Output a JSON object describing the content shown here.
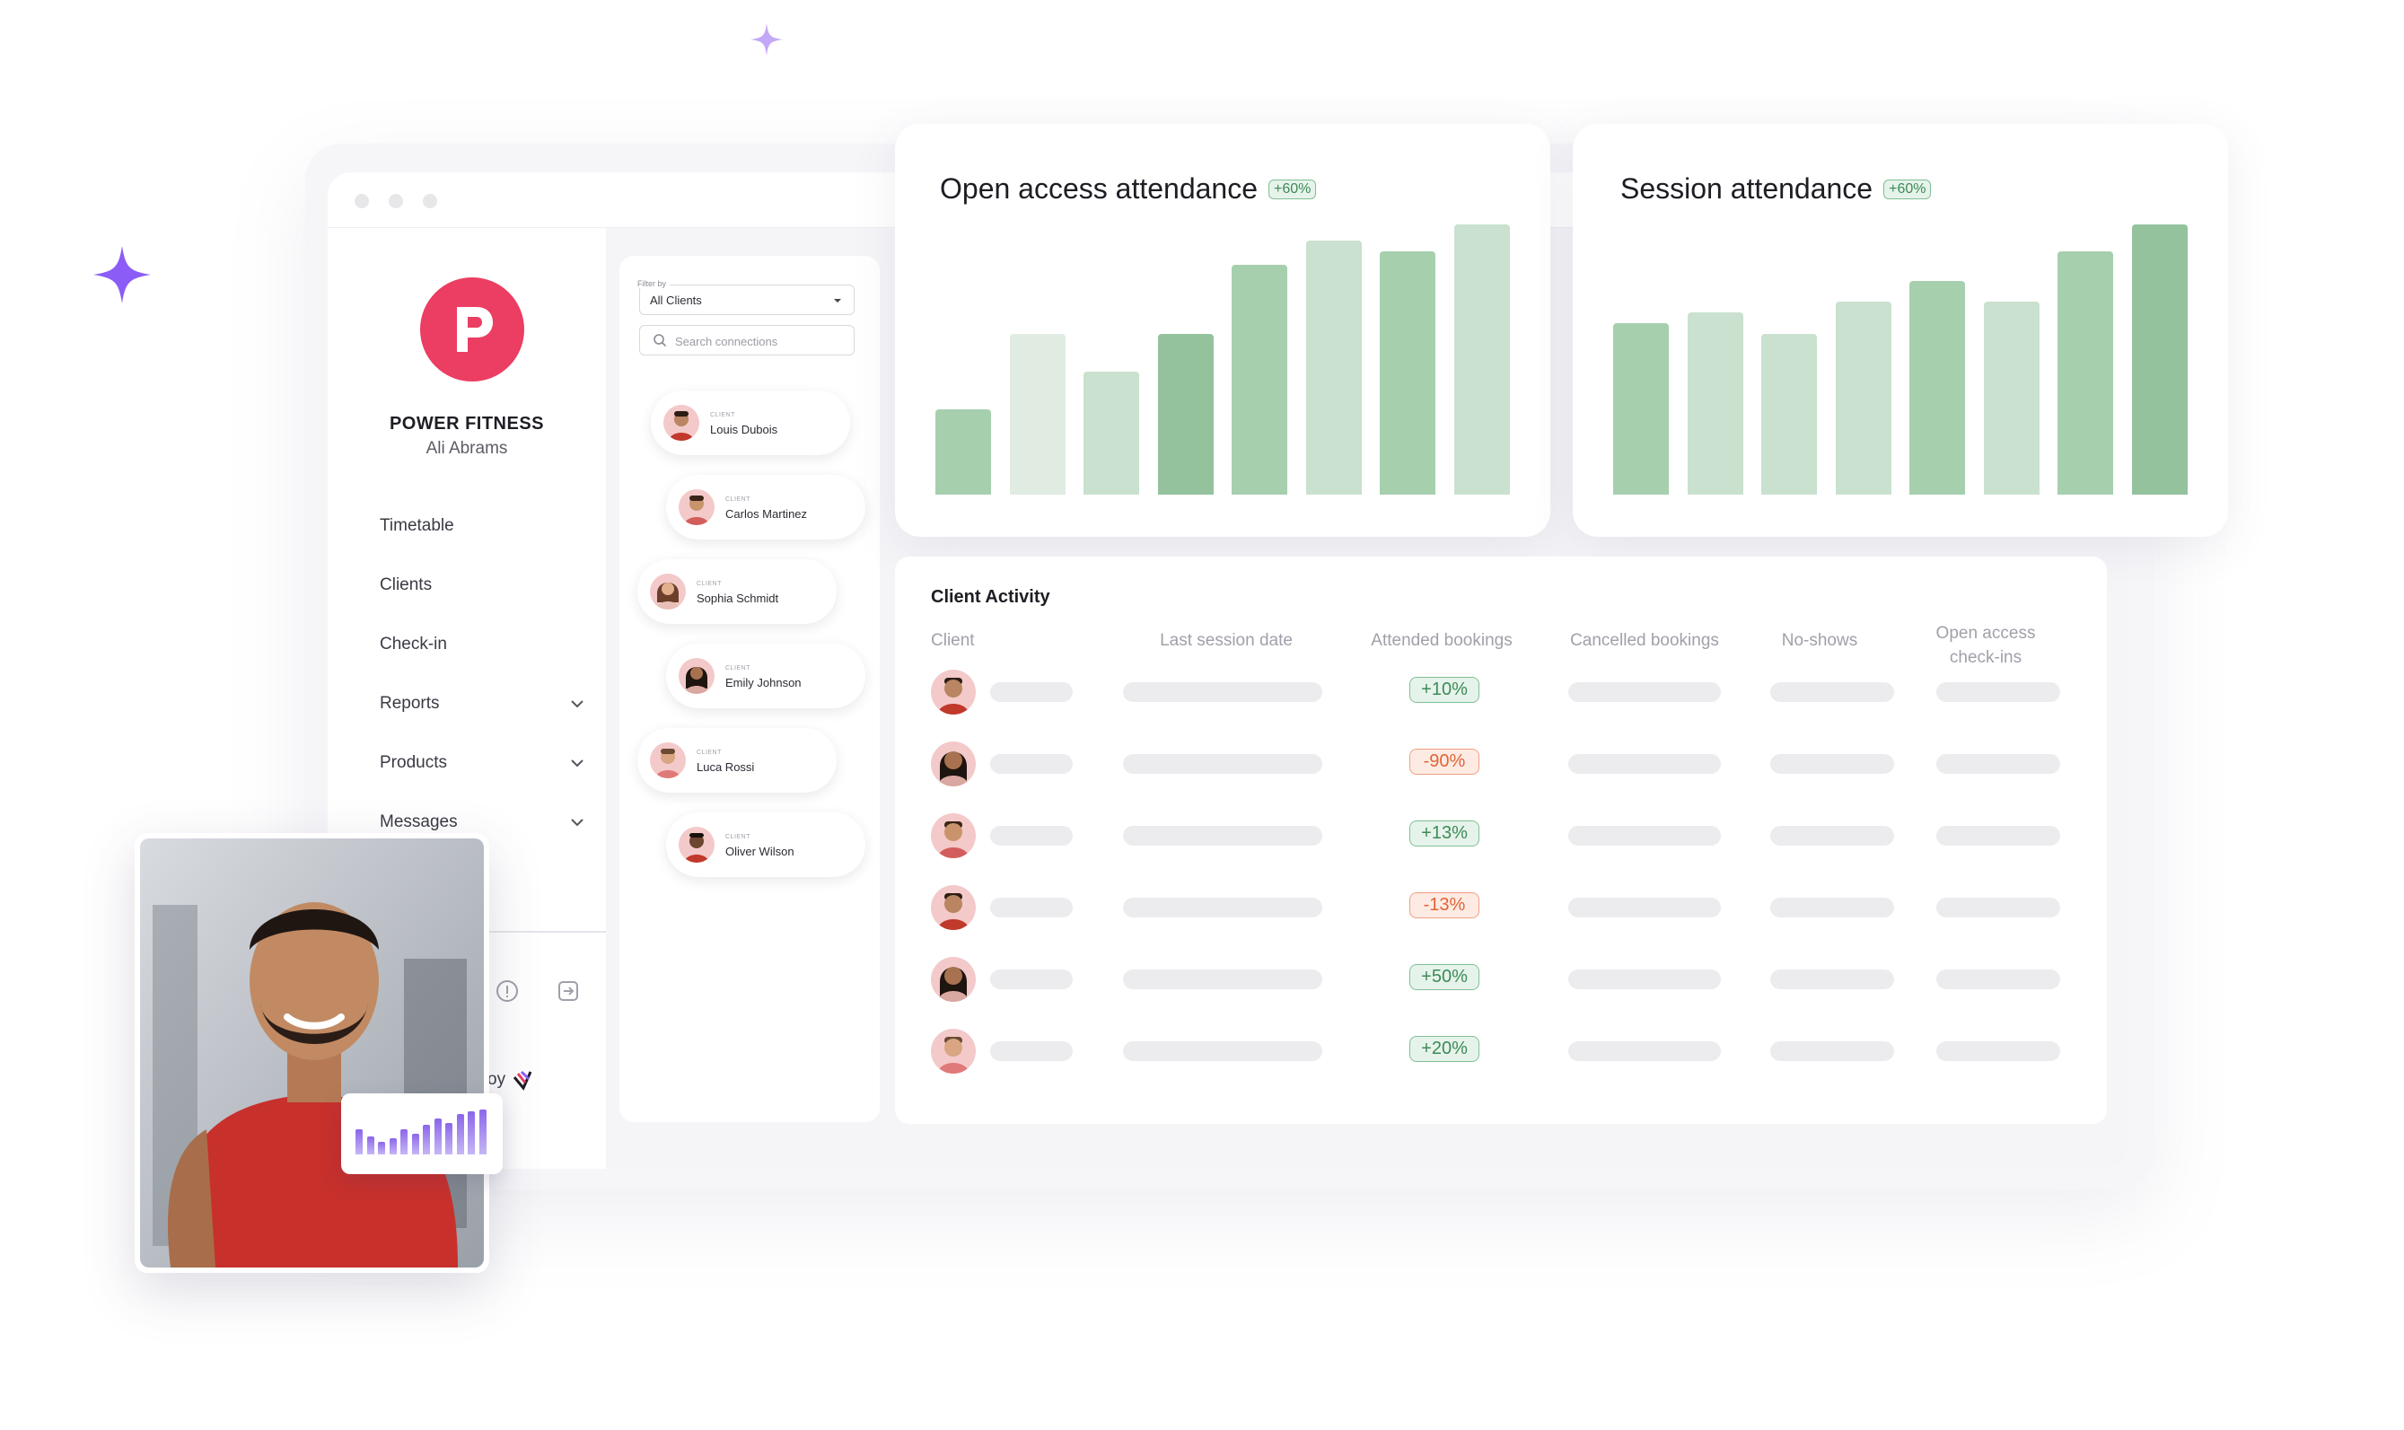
{
  "brand": {
    "name": "POWER FITNESS",
    "user": "Ali Abrams",
    "logo_letter": "P",
    "color": "#ec3d62"
  },
  "nav": {
    "items": [
      {
        "label": "Timetable",
        "has_chevron": false
      },
      {
        "label": "Clients",
        "has_chevron": false
      },
      {
        "label": "Check-in",
        "has_chevron": false
      },
      {
        "label": "Reports",
        "has_chevron": true
      },
      {
        "label": "Products",
        "has_chevron": true
      },
      {
        "label": "Messages",
        "has_chevron": true
      }
    ],
    "powered_by_fragment": "oy"
  },
  "client_list": {
    "filter_label": "Filter by",
    "filter_value": "All Clients",
    "search_placeholder": "Search connections",
    "clients": [
      {
        "tag": "CLIENT",
        "name": "Louis Dubois"
      },
      {
        "tag": "CLIENT",
        "name": "Carlos Martinez"
      },
      {
        "tag": "CLIENT",
        "name": "Sophia Schmidt"
      },
      {
        "tag": "CLIENT",
        "name": "Emily Johnson"
      },
      {
        "tag": "CLIENT",
        "name": "Luca Rossi"
      },
      {
        "tag": "CLIENT",
        "name": "Oliver Wilson"
      }
    ]
  },
  "charts": {
    "open_access": {
      "title": "Open access attendance",
      "badge": "+60%"
    },
    "session": {
      "title": "Session attendance",
      "badge": "+60%"
    }
  },
  "chart_data": [
    {
      "type": "bar",
      "title": "Open access attendance",
      "values": [
        32,
        60,
        46,
        60,
        86,
        95,
        91,
        101
      ],
      "ylim": [
        0,
        101
      ]
    },
    {
      "type": "bar",
      "title": "Session attendance",
      "values": [
        64,
        68,
        60,
        72,
        80,
        72,
        91,
        101
      ],
      "ylim": [
        0,
        101
      ]
    }
  ],
  "activity": {
    "title": "Client Activity",
    "columns": [
      "Client",
      "Last session date",
      "Attended bookings",
      "Cancelled bookings",
      "No-shows",
      "Open access check-ins"
    ],
    "rows": [
      {
        "delta": "+10%",
        "positive": true
      },
      {
        "delta": "-90%",
        "positive": false
      },
      {
        "delta": "+13%",
        "positive": true
      },
      {
        "delta": "-13%",
        "positive": false
      },
      {
        "delta": "+50%",
        "positive": true
      },
      {
        "delta": "+20%",
        "positive": true
      }
    ]
  },
  "mini_chart_data": {
    "type": "bar",
    "values": [
      55,
      40,
      28,
      35,
      55,
      45,
      65,
      80,
      70,
      90,
      95,
      100
    ]
  },
  "colors": {
    "bar_dark": "#93c29d",
    "bar_mid": "#a6cfae",
    "bar_light": "#c9e1ce",
    "bar_pale": "#e0ece2",
    "accent": "#8b5cf6"
  }
}
